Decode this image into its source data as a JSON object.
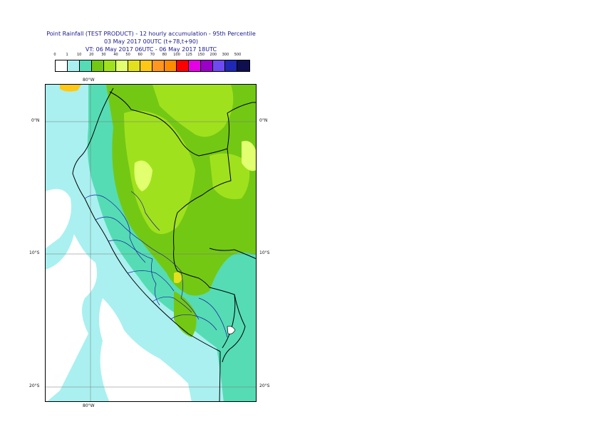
{
  "title": {
    "line1": "Point Rainfall (TEST PRODUCT) - 12 hourly accumulation - 95th Percentile",
    "line2": "03 May 2017 00UTC (t+78,t+90)",
    "line3": "VT: 06 May 2017 06UTC - 06 May 2017 18UTC"
  },
  "legend": {
    "thresholds": [
      "0",
      "1",
      "10",
      "20",
      "30",
      "40",
      "50",
      "60",
      "70",
      "80",
      "100",
      "125",
      "150",
      "200",
      "300",
      "500"
    ],
    "colors": [
      "#ffffff",
      "#aaf0f0",
      "#55dcb4",
      "#73c814",
      "#a0e11e",
      "#e1ff6e",
      "#e1e11e",
      "#ffc814",
      "#ff961e",
      "#ff8c00",
      "#ff0000",
      "#e600e6",
      "#9b00c8",
      "#6e4bf0",
      "#1e28b4",
      "#0f0f50"
    ]
  },
  "axes": {
    "lon_top": "80°W",
    "lon_bottom": "80°W",
    "lat_left": [
      "0°N",
      "10°S",
      "20°S"
    ],
    "lat_right": [
      "0°N",
      "10°S",
      "20°S"
    ]
  }
}
